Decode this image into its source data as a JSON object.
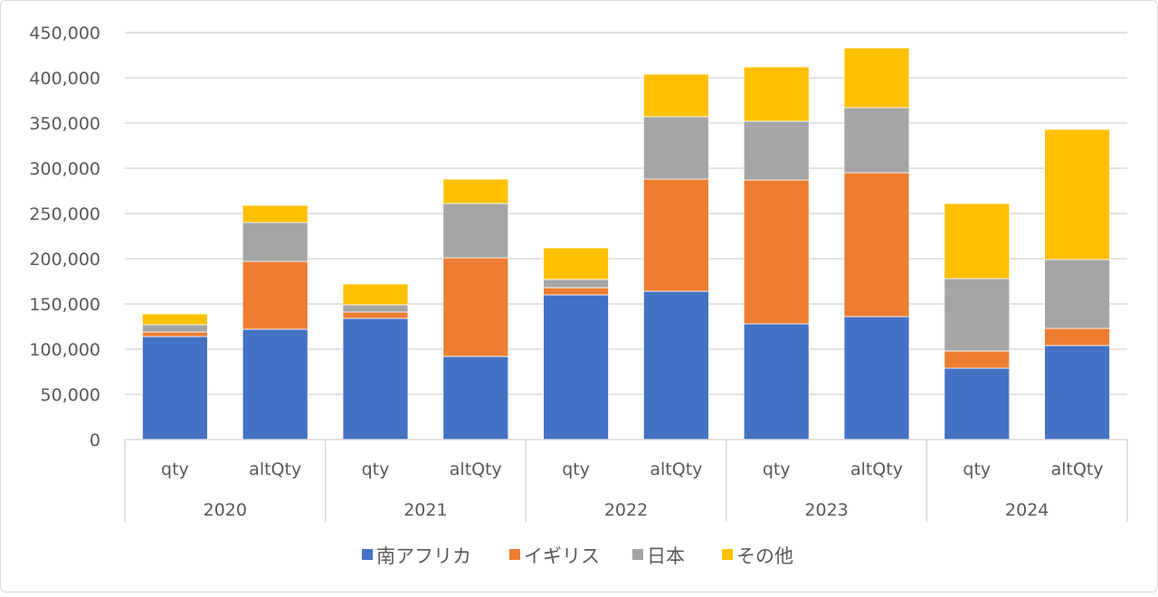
{
  "chart_data": {
    "type": "bar",
    "stacked": true,
    "title": "",
    "xlabel": "",
    "ylabel": "",
    "ylim": [
      0,
      450000
    ],
    "y_ticks": [
      0,
      50000,
      100000,
      150000,
      200000,
      250000,
      300000,
      350000,
      400000,
      450000
    ],
    "y_tick_labels": [
      "0",
      "50,000",
      "100,000",
      "150,000",
      "200,000",
      "250,000",
      "300,000",
      "350,000",
      "400,000",
      "450,000"
    ],
    "grid": true,
    "legend_position": "bottom",
    "groups": [
      "2020",
      "2021",
      "2022",
      "2023",
      "2024"
    ],
    "sub_categories": [
      "qty",
      "altQty"
    ],
    "categories": [
      "2020 qty",
      "2020 altQty",
      "2021 qty",
      "2021 altQty",
      "2022 qty",
      "2022 altQty",
      "2023 qty",
      "2023 altQty",
      "2024 qty",
      "2024 altQty"
    ],
    "series": [
      {
        "name": "南アフリカ",
        "color": "#4472c4",
        "values": [
          114000,
          122000,
          134000,
          92000,
          160000,
          164000,
          128000,
          136000,
          79000,
          104000
        ]
      },
      {
        "name": "イギリス",
        "color": "#ed7d31",
        "values": [
          5000,
          75000,
          7000,
          109000,
          8000,
          124000,
          159000,
          159000,
          19000,
          19000
        ]
      },
      {
        "name": "日本",
        "color": "#a5a5a5",
        "values": [
          8000,
          43000,
          8000,
          60000,
          9000,
          69000,
          65000,
          72000,
          80000,
          76000
        ]
      },
      {
        "name": "その他",
        "color": "#ffc000",
        "values": [
          12000,
          19000,
          23000,
          27000,
          35000,
          47000,
          60000,
          66000,
          83000,
          144000
        ]
      }
    ]
  }
}
